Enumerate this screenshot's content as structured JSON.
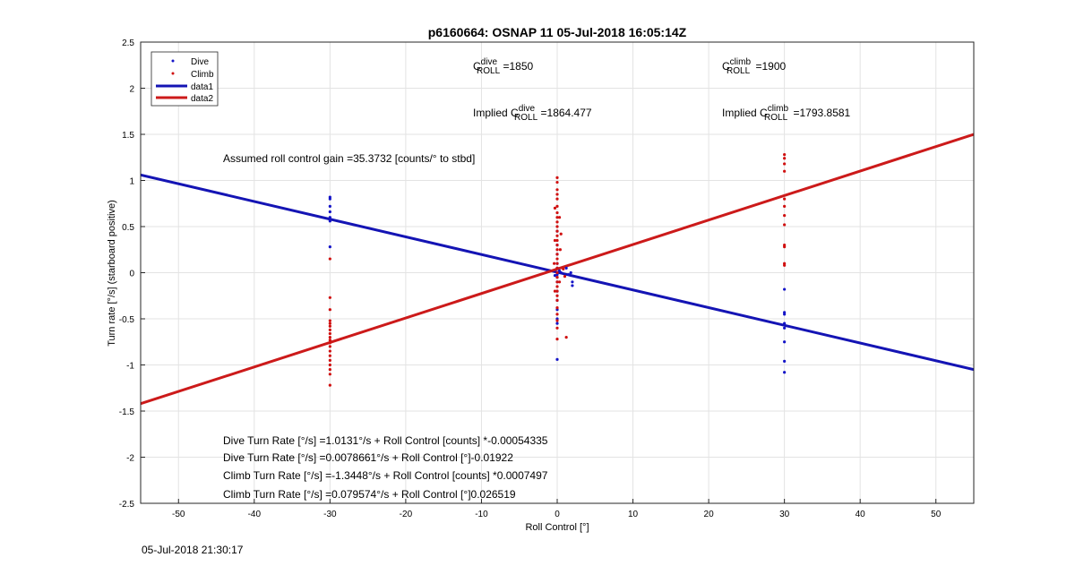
{
  "chart_data": {
    "type": "scatter",
    "title": "p6160664: OSNAP 11 05-Jul-2018 16:05:14Z",
    "xlabel": "Roll Control [°]",
    "ylabel": "Turn rate [°/s] (starboard positive)",
    "xlim": [
      -55,
      55
    ],
    "ylim": [
      -2.5,
      2.5
    ],
    "xticks": [
      -50,
      -40,
      -30,
      -20,
      -10,
      0,
      10,
      20,
      30,
      40,
      50
    ],
    "yticks": [
      -2.5,
      -2,
      -1.5,
      -1,
      -0.5,
      0,
      0.5,
      1,
      1.5,
      2,
      2.5
    ],
    "grid": true,
    "legend_position": "top-left",
    "legend": [
      {
        "label": "Dive",
        "marker": "dot",
        "color": "#1414c8"
      },
      {
        "label": "Climb",
        "marker": "dot",
        "color": "#d01010"
      },
      {
        "label": "data1",
        "marker": "line",
        "color": "#1414b4"
      },
      {
        "label": "data2",
        "marker": "line",
        "color": "#cc1a1a"
      }
    ],
    "series": [
      {
        "name": "Dive",
        "kind": "points",
        "color": "#1414c8",
        "points": [
          [
            -30,
            0.82
          ],
          [
            -30,
            0.8
          ],
          [
            -30,
            0.72
          ],
          [
            -30,
            0.66
          ],
          [
            -30,
            0.6
          ],
          [
            -30,
            0.56
          ],
          [
            -30,
            0.28
          ],
          [
            0,
            0.45
          ],
          [
            0,
            0.3
          ],
          [
            0,
            0.2
          ],
          [
            0,
            0.1
          ],
          [
            0,
            0.05
          ],
          [
            0,
            0.0
          ],
          [
            0,
            -0.02
          ],
          [
            0,
            -0.05
          ],
          [
            0,
            -0.1
          ],
          [
            0,
            -0.2
          ],
          [
            0,
            -0.3
          ],
          [
            0,
            -0.4
          ],
          [
            0,
            -0.5
          ],
          [
            0,
            -0.55
          ],
          [
            0,
            -0.94
          ],
          [
            0.3,
            0.02
          ],
          [
            -0.3,
            -0.03
          ],
          [
            0.5,
            0.0
          ],
          [
            1.2,
            0.05
          ],
          [
            1.5,
            -0.02
          ],
          [
            2,
            -0.1
          ],
          [
            2,
            -0.14
          ],
          [
            1.8,
            0.0
          ],
          [
            30,
            -0.18
          ],
          [
            30,
            -0.43
          ],
          [
            30,
            -0.45
          ],
          [
            30,
            -0.55
          ],
          [
            30,
            -0.6
          ],
          [
            30,
            -0.75
          ],
          [
            30,
            -0.96
          ],
          [
            30,
            -1.08
          ]
        ]
      },
      {
        "name": "Climb",
        "kind": "points",
        "color": "#d01010",
        "points": [
          [
            -30,
            0.15
          ],
          [
            -30,
            -0.27
          ],
          [
            -30,
            -0.4
          ],
          [
            -30,
            -0.52
          ],
          [
            -30,
            -0.55
          ],
          [
            -30,
            -0.58
          ],
          [
            -30,
            -0.62
          ],
          [
            -30,
            -0.66
          ],
          [
            -30,
            -0.7
          ],
          [
            -30,
            -0.73
          ],
          [
            -30,
            -0.76
          ],
          [
            -30,
            -0.8
          ],
          [
            -30,
            -0.85
          ],
          [
            -30,
            -0.9
          ],
          [
            -30,
            -0.95
          ],
          [
            -30,
            -1.0
          ],
          [
            -30,
            -1.05
          ],
          [
            -30,
            -1.1
          ],
          [
            -30,
            -1.22
          ],
          [
            0,
            1.03
          ],
          [
            0,
            0.98
          ],
          [
            0,
            0.9
          ],
          [
            0,
            0.85
          ],
          [
            0,
            0.8
          ],
          [
            0,
            0.72
          ],
          [
            0,
            0.65
          ],
          [
            0,
            0.6
          ],
          [
            0,
            0.55
          ],
          [
            0,
            0.5
          ],
          [
            0,
            0.45
          ],
          [
            0,
            0.4
          ],
          [
            0,
            0.35
          ],
          [
            0,
            0.3
          ],
          [
            0,
            0.25
          ],
          [
            0,
            0.2
          ],
          [
            0,
            0.15
          ],
          [
            0,
            0.1
          ],
          [
            0,
            0.05
          ],
          [
            0,
            0.0
          ],
          [
            0,
            -0.05
          ],
          [
            0,
            -0.1
          ],
          [
            0,
            -0.15
          ],
          [
            0,
            -0.2
          ],
          [
            0,
            -0.25
          ],
          [
            0,
            -0.3
          ],
          [
            0,
            -0.38
          ],
          [
            0,
            -0.45
          ],
          [
            0,
            -0.52
          ],
          [
            0,
            -0.6
          ],
          [
            0,
            -0.72
          ],
          [
            -0.3,
            0.7
          ],
          [
            0.3,
            0.6
          ],
          [
            -0.3,
            0.35
          ],
          [
            0.4,
            0.25
          ],
          [
            -0.4,
            0.1
          ],
          [
            0.3,
            -0.1
          ],
          [
            -0.3,
            -0.2
          ],
          [
            0.5,
            0.42
          ],
          [
            0.8,
            0.04
          ],
          [
            1.0,
            -0.04
          ],
          [
            1.2,
            -0.7
          ],
          [
            30,
            1.28
          ],
          [
            30,
            1.24
          ],
          [
            30,
            1.18
          ],
          [
            30,
            1.1
          ],
          [
            30,
            0.8
          ],
          [
            30,
            0.72
          ],
          [
            30,
            0.62
          ],
          [
            30,
            0.52
          ],
          [
            30,
            0.3
          ],
          [
            30,
            0.28
          ],
          [
            30,
            0.1
          ],
          [
            30,
            0.08
          ]
        ]
      },
      {
        "name": "data1",
        "kind": "line",
        "color": "#1414b4",
        "x": [
          -55,
          55
        ],
        "y": [
          1.06,
          -1.05
        ]
      },
      {
        "name": "data2",
        "kind": "line",
        "color": "#cc1a1a",
        "x": [
          -55,
          55
        ],
        "y": [
          -1.42,
          1.5
        ]
      }
    ],
    "annotations": {
      "c_dive_label": "C",
      "c_dive_sup": "dive",
      "c_dive_sub": "ROLL",
      "c_dive_value": " =1850",
      "c_climb_label": "C",
      "c_climb_sup": "climb",
      "c_climb_sub": "ROLL",
      "c_climb_value": " =1900",
      "implied_dive_label": "Implied C",
      "implied_dive_sup": "dive",
      "implied_dive_sub": "ROLL",
      "implied_dive_value": " =1864.477",
      "implied_climb_label": "Implied C",
      "implied_climb_sup": "climb",
      "implied_climb_sub": "ROLL",
      "implied_climb_value": " =1793.8581",
      "gain": "Assumed roll control gain =35.3732 [counts/° to stbd]",
      "eq1": "Dive Turn Rate [°/s] =1.0131°/s + Roll Control [counts] *-0.00054335",
      "eq2": "Dive Turn Rate [°/s] =0.0078661°/s + Roll Control [°]-0.01922",
      "eq3": "Climb Turn Rate [°/s] =-1.3448°/s + Roll Control [counts] *0.0007497",
      "eq4": "Climb Turn Rate [°/s] =0.079574°/s + Roll Control [°]0.026519"
    }
  },
  "footer": {
    "timestamp": "05-Jul-2018 21:30:17"
  }
}
